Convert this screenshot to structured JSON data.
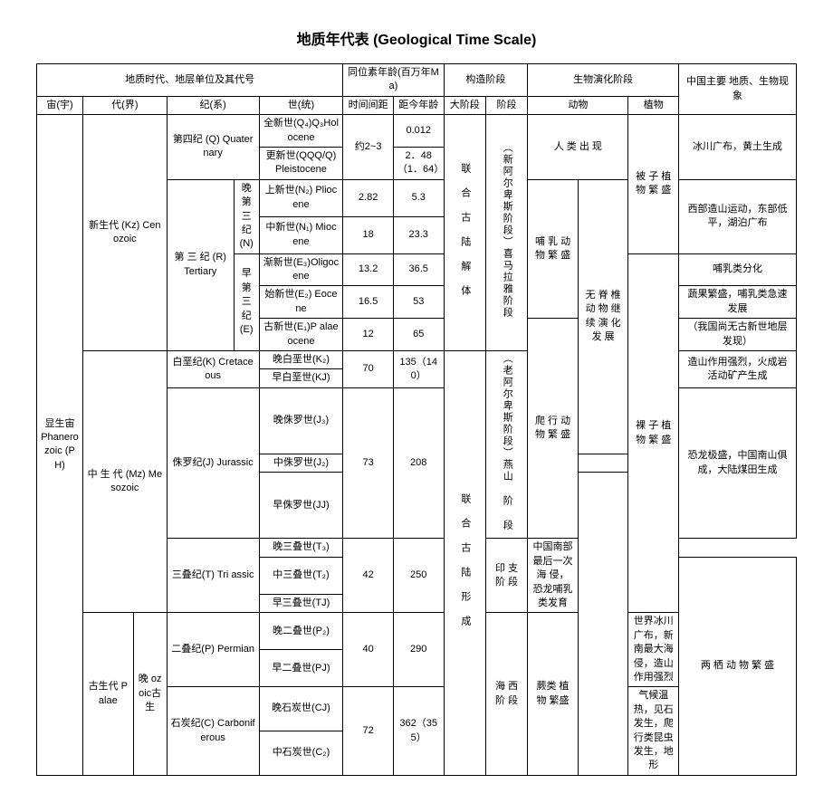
{
  "title": "地质年代表 (Geological Time Scale)",
  "headers": {
    "group_time": "地质时代、地层单位及其代号",
    "group_age": "同位素年龄(百万年Ma)",
    "group_tectonic": "构造阶段",
    "group_bio": "生物演化阶段",
    "eon": "宙(宇)",
    "era": "代(界)",
    "period": "纪(系)",
    "epoch": "世(统)",
    "span": "时间间距",
    "age": "距今年龄",
    "bigstage": "大阶段",
    "stage": "阶段",
    "animal": "动物",
    "plant": "植物",
    "china": "中国主要 地质、生物现象"
  },
  "eon_label": "显生宙 Phanerozoic (PH)",
  "era_cz": "新生代 (Kz) Cenozoic",
  "era_mz": "中 生 代 (Mz) Mesozoic",
  "era_pz_top": "古生代 Palae",
  "era_pz_sub": "晚 ozoic古生",
  "periods": {
    "q": "第四纪 (Q) Quaternary",
    "tertiary": "第 三 纪 (R) Tertiary",
    "n_label": "晚 第 三 纪 (N)",
    "e_label": "早 第 三 纪 (E)",
    "k": "白垩纪(K) Cretaceous",
    "j": "侏罗纪(J) Jurassic",
    "t": "三叠纪(T) Tri assic",
    "p": "二叠纪(P) Permian",
    "c": "石炭纪(C) Carboniferous"
  },
  "epochs": {
    "holocene": "全新世(Q₄)Q₃Holocene",
    "pleistocene": "更新世(QQQ/Q) Pleistocene",
    "pliocene": "上新世(N₂) Pliocene",
    "miocene": "中新世(N₁) Miocene",
    "oligocene": "渐新世(E₃)Oligocene",
    "eocene": "始新世(E₂) Eocene",
    "paleocene": "古新世(E₁)P alaeocene",
    "k2": "晚白垩世(K₂)",
    "k1": "早白垩世(KJ)",
    "j3": "晚侏罗世(J₃)",
    "j2": "中侏罗世(J₂)",
    "j1": "早侏罗世(JJ)",
    "t3": "晚三叠世(T₃)",
    "t2": "中三叠世(T₂)",
    "t1": "早三叠世(TJ)",
    "p2": "晚二叠世(P₂)",
    "p1": "早二叠世(PJ)",
    "c3": "晚石炭世(CJ)",
    "c2": "中石炭世(C₂)"
  },
  "spans": {
    "q": "约2~3",
    "pliocene": "2.82",
    "miocene": "18",
    "oligocene": "13.2",
    "eocene": "16.5",
    "paleocene": "12",
    "k": "70",
    "j": "73",
    "t": "42",
    "p": "40",
    "c": "72"
  },
  "ages": {
    "holocene": "0.012",
    "pleistocene": "2．48（1．64）",
    "pliocene": "5.3",
    "miocene": "23.3",
    "oligocene": "36.5",
    "eocene": "53",
    "paleocene": "65",
    "k": "135（140）",
    "j": "208",
    "t": "250",
    "p": "290",
    "c": "362（355）"
  },
  "bigstage": {
    "pangea_break": "联 合 古 陆 解 体",
    "pangea_form": "联 合 古 陆 形 成"
  },
  "stages": {
    "alps_xmly": "（新阿尔卑斯阶段）喜马拉雅阶段",
    "alps_yanshan": "（老阿尔卑斯阶段）燕山 阶 段",
    "indo_label": "印 支 |",
    "indo_sub": "印 支 阶 段",
    "haixi_label": "海 西 阶",
    "haixi_sub": "海 西 阶 段"
  },
  "animals": {
    "human": "人 类 出 现",
    "mammal": "哺 乳 动 物 繁 盛",
    "invert": "无 脊 椎 动 物 继 续 演 化 发 展",
    "reptile": "爬 行 动 物 繁 盛",
    "amphibian": "两 栖 动 物 繁 盛"
  },
  "plants": {
    "angiosperm": "被 子 植 物 繁 盛",
    "gymnosperm": "裸 子 植 物 繁 盛",
    "fern": "蕨类 植物 繁盛"
  },
  "china": {
    "q": "冰川广布，黄土生成",
    "n": "西部造山运动，东部低平，湖泊广布",
    "oligocene": "哺乳类分化",
    "eocene": "蔬果繁盛，哺乳类急速发展",
    "paleocene": "（我国尚无古新世地层发现）",
    "k": "造山作用强烈，火成岩 活动矿产生成",
    "j": "恐龙极盛，中国南山俱成，大陆煤田生成",
    "t": "中国南部最后一次海 侵，恐龙哺乳类发育",
    "p": "世界冰川广布，新南最大海侵，造山作用强烈",
    "c": "气候温热，见石发生，爬行类昆虫发生，地形"
  }
}
